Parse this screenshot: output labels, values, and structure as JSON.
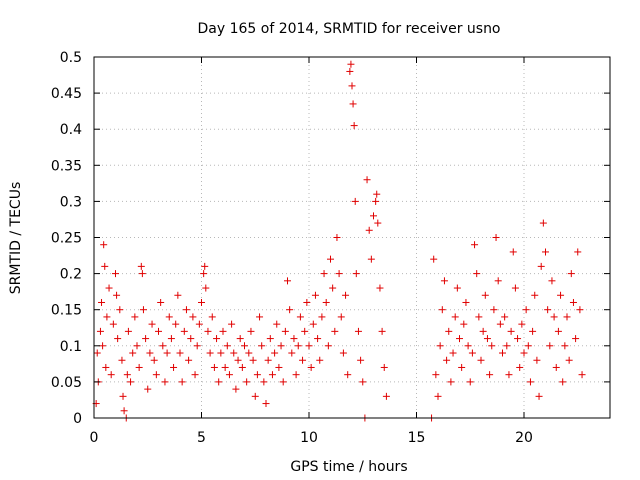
{
  "chart_data": {
    "type": "scatter",
    "title": "Day 165 of 2014, SRMTID for receiver usno",
    "xlabel": "GPS time / hours",
    "ylabel": "SRMTID / TECUs",
    "xlim": [
      0,
      24
    ],
    "ylim": [
      0,
      0.5
    ],
    "xticks": [
      0,
      5,
      10,
      15,
      20
    ],
    "xtick_labels": [
      "0",
      "5",
      "10",
      "15",
      "20"
    ],
    "yticks": [
      0,
      0.05,
      0.1,
      0.15,
      0.2,
      0.25,
      0.3,
      0.35,
      0.4,
      0.45,
      0.5
    ],
    "ytick_labels": [
      "0",
      "0.05",
      "0.1",
      "0.15",
      "0.2",
      "0.25",
      "0.3",
      "0.35",
      "0.4",
      "0.45",
      "0.5"
    ],
    "grid": true,
    "marker": "+",
    "marker_color": "#e00000",
    "series": [
      {
        "name": "SRMTID",
        "points": [
          [
            0.1,
            0.02
          ],
          [
            0.15,
            0.09
          ],
          [
            0.2,
            0.05
          ],
          [
            0.3,
            0.12
          ],
          [
            0.35,
            0.16
          ],
          [
            0.4,
            0.1
          ],
          [
            0.45,
            0.24
          ],
          [
            0.5,
            0.21
          ],
          [
            0.55,
            0.07
          ],
          [
            0.6,
            0.14
          ],
          [
            0.7,
            0.18
          ],
          [
            0.8,
            0.06
          ],
          [
            0.9,
            0.13
          ],
          [
            1.0,
            0.2
          ],
          [
            1.05,
            0.17
          ],
          [
            1.1,
            0.11
          ],
          [
            1.2,
            0.15
          ],
          [
            1.3,
            0.08
          ],
          [
            1.35,
            0.03
          ],
          [
            1.4,
            0.01
          ],
          [
            1.5,
            0.0
          ],
          [
            1.55,
            0.06
          ],
          [
            1.6,
            0.12
          ],
          [
            1.7,
            0.05
          ],
          [
            1.8,
            0.09
          ],
          [
            1.9,
            0.14
          ],
          [
            2.0,
            0.1
          ],
          [
            2.1,
            0.07
          ],
          [
            2.2,
            0.21
          ],
          [
            2.25,
            0.2
          ],
          [
            2.3,
            0.15
          ],
          [
            2.4,
            0.11
          ],
          [
            2.5,
            0.04
          ],
          [
            2.6,
            0.09
          ],
          [
            2.7,
            0.13
          ],
          [
            2.8,
            0.08
          ],
          [
            2.9,
            0.06
          ],
          [
            3.0,
            0.12
          ],
          [
            3.1,
            0.16
          ],
          [
            3.2,
            0.1
          ],
          [
            3.3,
            0.05
          ],
          [
            3.4,
            0.09
          ],
          [
            3.5,
            0.14
          ],
          [
            3.6,
            0.11
          ],
          [
            3.7,
            0.07
          ],
          [
            3.8,
            0.13
          ],
          [
            3.9,
            0.17
          ],
          [
            4.0,
            0.09
          ],
          [
            4.1,
            0.05
          ],
          [
            4.2,
            0.12
          ],
          [
            4.3,
            0.15
          ],
          [
            4.4,
            0.08
          ],
          [
            4.5,
            0.11
          ],
          [
            4.6,
            0.14
          ],
          [
            4.7,
            0.06
          ],
          [
            4.8,
            0.1
          ],
          [
            4.9,
            0.13
          ],
          [
            5.0,
            0.16
          ],
          [
            5.1,
            0.2
          ],
          [
            5.15,
            0.21
          ],
          [
            5.2,
            0.18
          ],
          [
            5.3,
            0.12
          ],
          [
            5.4,
            0.09
          ],
          [
            5.5,
            0.14
          ],
          [
            5.6,
            0.07
          ],
          [
            5.7,
            0.11
          ],
          [
            5.8,
            0.05
          ],
          [
            5.9,
            0.09
          ],
          [
            6.0,
            0.12
          ],
          [
            6.1,
            0.07
          ],
          [
            6.2,
            0.1
          ],
          [
            6.3,
            0.06
          ],
          [
            6.4,
            0.13
          ],
          [
            6.5,
            0.09
          ],
          [
            6.6,
            0.04
          ],
          [
            6.7,
            0.08
          ],
          [
            6.8,
            0.11
          ],
          [
            6.9,
            0.07
          ],
          [
            7.0,
            0.1
          ],
          [
            7.1,
            0.05
          ],
          [
            7.2,
            0.09
          ],
          [
            7.3,
            0.12
          ],
          [
            7.4,
            0.08
          ],
          [
            7.5,
            0.03
          ],
          [
            7.6,
            0.06
          ],
          [
            7.7,
            0.14
          ],
          [
            7.8,
            0.1
          ],
          [
            7.9,
            0.05
          ],
          [
            8.0,
            0.02
          ],
          [
            8.1,
            0.08
          ],
          [
            8.2,
            0.11
          ],
          [
            8.3,
            0.06
          ],
          [
            8.4,
            0.09
          ],
          [
            8.5,
            0.13
          ],
          [
            8.6,
            0.07
          ],
          [
            8.7,
            0.1
          ],
          [
            8.8,
            0.05
          ],
          [
            8.9,
            0.12
          ],
          [
            9.0,
            0.19
          ],
          [
            9.1,
            0.15
          ],
          [
            9.2,
            0.09
          ],
          [
            9.3,
            0.11
          ],
          [
            9.4,
            0.06
          ],
          [
            9.5,
            0.1
          ],
          [
            9.6,
            0.14
          ],
          [
            9.7,
            0.08
          ],
          [
            9.8,
            0.12
          ],
          [
            9.9,
            0.16
          ],
          [
            10.0,
            0.1
          ],
          [
            10.1,
            0.07
          ],
          [
            10.2,
            0.13
          ],
          [
            10.3,
            0.17
          ],
          [
            10.4,
            0.11
          ],
          [
            10.5,
            0.08
          ],
          [
            10.6,
            0.14
          ],
          [
            10.7,
            0.2
          ],
          [
            10.8,
            0.16
          ],
          [
            10.9,
            0.1
          ],
          [
            11.0,
            0.22
          ],
          [
            11.1,
            0.18
          ],
          [
            11.2,
            0.12
          ],
          [
            11.3,
            0.25
          ],
          [
            11.4,
            0.2
          ],
          [
            11.5,
            0.14
          ],
          [
            11.6,
            0.09
          ],
          [
            11.7,
            0.17
          ],
          [
            11.8,
            0.06
          ],
          [
            11.9,
            0.48
          ],
          [
            11.95,
            0.49
          ],
          [
            12.0,
            0.46
          ],
          [
            12.05,
            0.435
          ],
          [
            12.1,
            0.405
          ],
          [
            12.15,
            0.3
          ],
          [
            12.2,
            0.2
          ],
          [
            12.3,
            0.12
          ],
          [
            12.4,
            0.08
          ],
          [
            12.5,
            0.05
          ],
          [
            12.6,
            0.0
          ],
          [
            12.7,
            0.33
          ],
          [
            12.8,
            0.26
          ],
          [
            12.9,
            0.22
          ],
          [
            13.0,
            0.28
          ],
          [
            13.1,
            0.3
          ],
          [
            13.15,
            0.31
          ],
          [
            13.2,
            0.27
          ],
          [
            13.3,
            0.18
          ],
          [
            13.4,
            0.12
          ],
          [
            13.5,
            0.07
          ],
          [
            13.6,
            0.03
          ],
          [
            15.7,
            0.0
          ],
          [
            15.8,
            0.22
          ],
          [
            15.9,
            0.06
          ],
          [
            16.0,
            0.03
          ],
          [
            16.1,
            0.1
          ],
          [
            16.2,
            0.15
          ],
          [
            16.3,
            0.19
          ],
          [
            16.4,
            0.08
          ],
          [
            16.5,
            0.12
          ],
          [
            16.6,
            0.05
          ],
          [
            16.7,
            0.09
          ],
          [
            16.8,
            0.14
          ],
          [
            16.9,
            0.18
          ],
          [
            17.0,
            0.11
          ],
          [
            17.1,
            0.07
          ],
          [
            17.2,
            0.13
          ],
          [
            17.3,
            0.16
          ],
          [
            17.4,
            0.1
          ],
          [
            17.5,
            0.05
          ],
          [
            17.6,
            0.09
          ],
          [
            17.7,
            0.24
          ],
          [
            17.8,
            0.2
          ],
          [
            17.9,
            0.14
          ],
          [
            18.0,
            0.08
          ],
          [
            18.1,
            0.12
          ],
          [
            18.2,
            0.17
          ],
          [
            18.3,
            0.11
          ],
          [
            18.4,
            0.06
          ],
          [
            18.5,
            0.1
          ],
          [
            18.6,
            0.15
          ],
          [
            18.7,
            0.25
          ],
          [
            18.8,
            0.19
          ],
          [
            18.9,
            0.13
          ],
          [
            19.0,
            0.09
          ],
          [
            19.1,
            0.14
          ],
          [
            19.2,
            0.1
          ],
          [
            19.3,
            0.06
          ],
          [
            19.4,
            0.12
          ],
          [
            19.5,
            0.23
          ],
          [
            19.6,
            0.18
          ],
          [
            19.7,
            0.11
          ],
          [
            19.8,
            0.07
          ],
          [
            19.9,
            0.13
          ],
          [
            20.0,
            0.09
          ],
          [
            20.1,
            0.15
          ],
          [
            20.2,
            0.1
          ],
          [
            20.3,
            0.05
          ],
          [
            20.4,
            0.12
          ],
          [
            20.5,
            0.17
          ],
          [
            20.6,
            0.08
          ],
          [
            20.7,
            0.03
          ],
          [
            20.8,
            0.21
          ],
          [
            20.9,
            0.27
          ],
          [
            21.0,
            0.23
          ],
          [
            21.1,
            0.15
          ],
          [
            21.2,
            0.1
          ],
          [
            21.3,
            0.19
          ],
          [
            21.4,
            0.14
          ],
          [
            21.5,
            0.07
          ],
          [
            21.6,
            0.12
          ],
          [
            21.7,
            0.17
          ],
          [
            21.8,
            0.05
          ],
          [
            21.9,
            0.1
          ],
          [
            22.0,
            0.14
          ],
          [
            22.1,
            0.08
          ],
          [
            22.2,
            0.2
          ],
          [
            22.3,
            0.16
          ],
          [
            22.4,
            0.11
          ],
          [
            22.5,
            0.23
          ],
          [
            22.6,
            0.15
          ],
          [
            22.7,
            0.06
          ]
        ]
      }
    ]
  }
}
